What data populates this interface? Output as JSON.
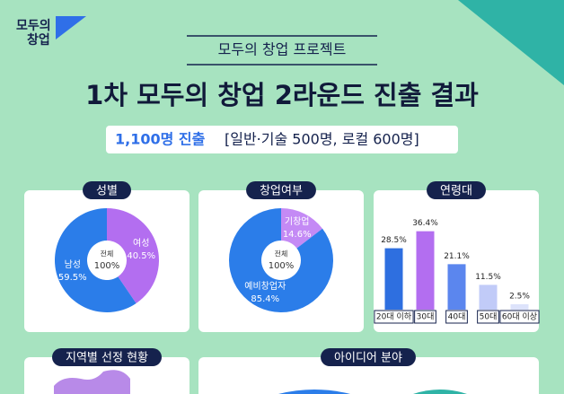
{
  "logo": {
    "line1": "모두의",
    "line2": "창업"
  },
  "header": {
    "kicker": "모두의 창업 프로젝트",
    "title": "1차 모두의 창업 2라운드 진출 결과",
    "highlight": "1,100명 진출",
    "detail": "[일반·기술 500명, 로컬 600명]"
  },
  "chart_data": [
    {
      "type": "pie",
      "title": "성별",
      "center_label": "전체",
      "total_label": "100%",
      "categories": [
        "여성",
        "남성"
      ],
      "values": [
        40.5,
        59.5
      ],
      "value_labels": [
        "40.5%",
        "59.5%"
      ],
      "colors": [
        "#b36ef0",
        "#2b7de9"
      ]
    },
    {
      "type": "pie",
      "title": "창업여부",
      "center_label": "전체",
      "total_label": "100%",
      "categories": [
        "기창업",
        "예비창업자"
      ],
      "values": [
        14.6,
        85.4
      ],
      "value_labels": [
        "14.6%",
        "85.4%"
      ],
      "colors": [
        "#c48af5",
        "#2b7de9"
      ]
    },
    {
      "type": "bar",
      "title": "연령대",
      "categories": [
        "20대 이하",
        "30대",
        "40대",
        "50대",
        "60대 이상"
      ],
      "values": [
        28.5,
        36.4,
        21.1,
        11.5,
        2.5
      ],
      "value_labels": [
        "28.5%",
        "36.4%",
        "21.1%",
        "11.5%",
        "2.5%"
      ],
      "colors": [
        "#2e6fe0",
        "#b36ef0",
        "#5b86ee",
        "#c1cbf8",
        "#dde3fb"
      ]
    }
  ],
  "panels": [
    {
      "title": "지역별 선정 현황"
    },
    {
      "title": "아이디어 분야"
    }
  ]
}
